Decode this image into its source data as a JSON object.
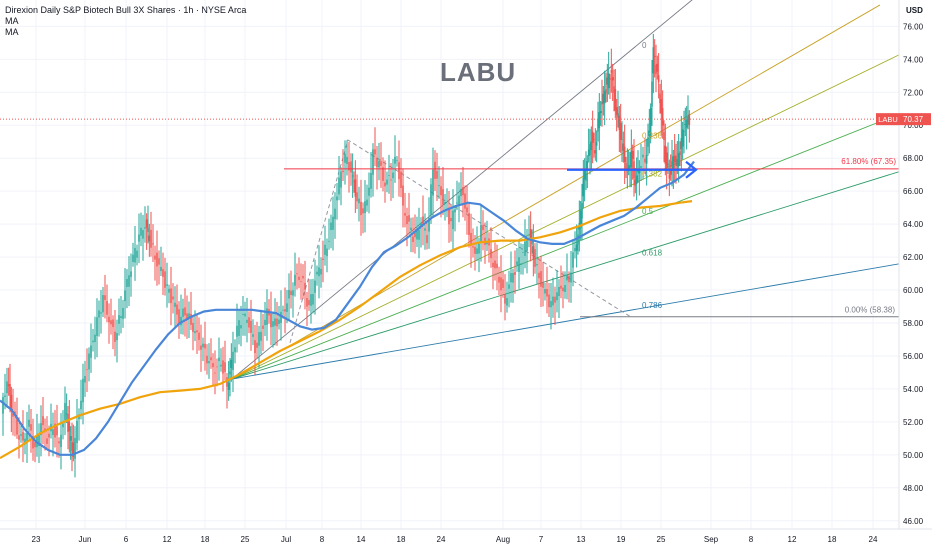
{
  "legend": {
    "title": "Direxion Daily S&P Biotech Bull 3X Shares · 1h · NYSE Arca",
    "ma1": "MA",
    "ma2": "MA"
  },
  "watermark": "LABU",
  "currency": "USD",
  "colors": {
    "up": "#26a69a",
    "down": "#ef5350",
    "ma_fast": "#4a86d8",
    "ma_slow": "#f0a30a",
    "price_line": "#ef5350",
    "fib_line": "#f23645",
    "arrow": "#2962ff",
    "zero_line": "#787b86"
  },
  "chart_data": {
    "type": "candlestick",
    "ticker": "LABU",
    "last_price": 70.37,
    "last_price_label": "70.37",
    "ticker_label": "LABU",
    "y_range": [
      45.5,
      77.6
    ],
    "y_ticks": [
      46,
      48,
      50,
      52,
      54,
      56,
      58,
      60,
      62,
      64,
      66,
      68,
      70,
      72,
      74,
      76
    ],
    "y_tick_labels": [
      "46.00",
      "48.00",
      "50.00",
      "52.00",
      "54.00",
      "56.00",
      "58.00",
      "60.00",
      "62.00",
      "64.00",
      "66.00",
      "68.00",
      "70.00",
      "72.00",
      "74.00",
      "76.00"
    ],
    "x_range": [
      0,
      930
    ],
    "x_ticks": [
      {
        "label": "23",
        "pos": 36
      },
      {
        "label": "Jun",
        "pos": 85
      },
      {
        "label": "6",
        "pos": 126
      },
      {
        "label": "12",
        "pos": 167
      },
      {
        "label": "18",
        "pos": 205
      },
      {
        "label": "25",
        "pos": 245
      },
      {
        "label": "Jul",
        "pos": 286
      },
      {
        "label": "8",
        "pos": 322
      },
      {
        "label": "14",
        "pos": 361
      },
      {
        "label": "18",
        "pos": 401
      },
      {
        "label": "24",
        "pos": 441
      },
      {
        "label": "Aug",
        "pos": 503
      },
      {
        "label": "7",
        "pos": 541
      },
      {
        "label": "13",
        "pos": 581
      },
      {
        "label": "19",
        "pos": 621
      },
      {
        "label": "25",
        "pos": 661
      },
      {
        "label": "Sep",
        "pos": 711
      },
      {
        "label": "8",
        "pos": 751
      },
      {
        "label": "12",
        "pos": 792
      },
      {
        "label": "18",
        "pos": 832
      },
      {
        "label": "24",
        "pos": 873
      }
    ],
    "close_path": [
      [
        2,
        52.5
      ],
      [
        8,
        54.5
      ],
      [
        12,
        53.0
      ],
      [
        18,
        51.5
      ],
      [
        24,
        50.8
      ],
      [
        30,
        51.8
      ],
      [
        36,
        50.2
      ],
      [
        42,
        52.0
      ],
      [
        48,
        51.0
      ],
      [
        54,
        51.8
      ],
      [
        60,
        50.6
      ],
      [
        66,
        52.8
      ],
      [
        70,
        51.2
      ],
      [
        74,
        50.0
      ],
      [
        80,
        52.8
      ],
      [
        86,
        55.0
      ],
      [
        92,
        56.5
      ],
      [
        98,
        58.0
      ],
      [
        104,
        59.5
      ],
      [
        110,
        58.2
      ],
      [
        116,
        57.2
      ],
      [
        122,
        58.6
      ],
      [
        128,
        60.5
      ],
      [
        134,
        61.8
      ],
      [
        140,
        63.2
      ],
      [
        146,
        64.0
      ],
      [
        150,
        63.3
      ],
      [
        156,
        62.0
      ],
      [
        162,
        61.2
      ],
      [
        168,
        60.0
      ],
      [
        174,
        59.3
      ],
      [
        180,
        58.2
      ],
      [
        186,
        58.8
      ],
      [
        192,
        58.0
      ],
      [
        198,
        57.2
      ],
      [
        204,
        56.4
      ],
      [
        210,
        55.6
      ],
      [
        216,
        55.2
      ],
      [
        222,
        55.8
      ],
      [
        228,
        54.2
      ],
      [
        232,
        55.5
      ],
      [
        238,
        57.5
      ],
      [
        244,
        58.5
      ],
      [
        250,
        58.0
      ],
      [
        256,
        56.5
      ],
      [
        262,
        57.5
      ],
      [
        268,
        58.6
      ],
      [
        274,
        57.8
      ],
      [
        280,
        58.2
      ],
      [
        286,
        59.0
      ],
      [
        292,
        60.0
      ],
      [
        298,
        61.0
      ],
      [
        304,
        60.4
      ],
      [
        310,
        58.8
      ],
      [
        316,
        60.6
      ],
      [
        322,
        61.6
      ],
      [
        328,
        62.8
      ],
      [
        334,
        64.4
      ],
      [
        340,
        66.5
      ],
      [
        346,
        68.0
      ],
      [
        352,
        67.2
      ],
      [
        356,
        66.0
      ],
      [
        362,
        64.8
      ],
      [
        368,
        65.4
      ],
      [
        374,
        68.2
      ],
      [
        380,
        67.6
      ],
      [
        386,
        66.4
      ],
      [
        392,
        67.0
      ],
      [
        398,
        68.1
      ],
      [
        404,
        65.0
      ],
      [
        410,
        63.8
      ],
      [
        416,
        63.0
      ],
      [
        422,
        64.2
      ],
      [
        428,
        63.2
      ],
      [
        434,
        67.5
      ],
      [
        440,
        66.2
      ],
      [
        446,
        65.0
      ],
      [
        452,
        64.0
      ],
      [
        458,
        65.5
      ],
      [
        464,
        66.1
      ],
      [
        470,
        63.5
      ],
      [
        476,
        62.0
      ],
      [
        482,
        63.6
      ],
      [
        488,
        62.8
      ],
      [
        494,
        61.6
      ],
      [
        500,
        60.8
      ],
      [
        506,
        59.3
      ],
      [
        512,
        60.8
      ],
      [
        518,
        61.4
      ],
      [
        524,
        62.2
      ],
      [
        530,
        63.6
      ],
      [
        534,
        62.2
      ],
      [
        540,
        60.8
      ],
      [
        546,
        59.8
      ],
      [
        552,
        59.0
      ],
      [
        558,
        59.8
      ],
      [
        564,
        60.2
      ],
      [
        570,
        60.8
      ],
      [
        576,
        62.6
      ],
      [
        580,
        63.8
      ],
      [
        584,
        66.5
      ],
      [
        588,
        67.8
      ],
      [
        592,
        69.3
      ],
      [
        596,
        68.6
      ],
      [
        600,
        70.8
      ],
      [
        604,
        71.6
      ],
      [
        608,
        72.6
      ],
      [
        612,
        73.2
      ],
      [
        616,
        71.2
      ],
      [
        620,
        70.0
      ],
      [
        624,
        68.4
      ],
      [
        628,
        67.0
      ],
      [
        632,
        68.2
      ],
      [
        636,
        66.4
      ],
      [
        640,
        67.6
      ],
      [
        646,
        68.0
      ],
      [
        650,
        69.6
      ],
      [
        654,
        74.4
      ],
      [
        658,
        73.0
      ],
      [
        662,
        70.8
      ],
      [
        666,
        68.0
      ],
      [
        670,
        67.0
      ],
      [
        674,
        68.0
      ],
      [
        678,
        67.6
      ],
      [
        682,
        69.0
      ],
      [
        686,
        70.2
      ],
      [
        690,
        70.37
      ]
    ],
    "ma_fast": {
      "name": "MA",
      "points": [
        [
          0,
          53.3
        ],
        [
          12,
          52.7
        ],
        [
          24,
          51.6
        ],
        [
          36,
          50.8
        ],
        [
          48,
          50.3
        ],
        [
          60,
          50.0
        ],
        [
          72,
          50.0
        ],
        [
          84,
          50.3
        ],
        [
          96,
          51.0
        ],
        [
          108,
          52.0
        ],
        [
          120,
          53.2
        ],
        [
          132,
          54.4
        ],
        [
          144,
          55.4
        ],
        [
          156,
          56.4
        ],
        [
          168,
          57.3
        ],
        [
          180,
          58.0
        ],
        [
          192,
          58.4
        ],
        [
          204,
          58.7
        ],
        [
          216,
          58.8
        ],
        [
          228,
          58.8
        ],
        [
          240,
          58.8
        ],
        [
          252,
          58.8
        ],
        [
          264,
          58.7
        ],
        [
          276,
          58.6
        ],
        [
          288,
          58.2
        ],
        [
          300,
          57.8
        ],
        [
          312,
          57.6
        ],
        [
          324,
          57.7
        ],
        [
          336,
          58.2
        ],
        [
          348,
          59.2
        ],
        [
          360,
          60.2
        ],
        [
          372,
          61.4
        ],
        [
          384,
          62.3
        ],
        [
          396,
          62.7
        ],
        [
          408,
          63.2
        ],
        [
          420,
          63.8
        ],
        [
          432,
          64.4
        ],
        [
          444,
          64.8
        ],
        [
          456,
          65.1
        ],
        [
          468,
          65.3
        ],
        [
          480,
          65.2
        ],
        [
          492,
          64.7
        ],
        [
          504,
          64.2
        ],
        [
          516,
          63.6
        ],
        [
          528,
          63.1
        ],
        [
          540,
          62.9
        ],
        [
          552,
          62.8
        ],
        [
          564,
          62.8
        ],
        [
          576,
          63.1
        ],
        [
          588,
          63.5
        ],
        [
          600,
          63.9
        ],
        [
          612,
          64.2
        ],
        [
          624,
          64.5
        ],
        [
          636,
          65.0
        ],
        [
          648,
          65.6
        ],
        [
          660,
          66.2
        ],
        [
          672,
          66.5
        ],
        [
          684,
          67.0
        ],
        [
          694,
          67.8
        ]
      ]
    },
    "ma_slow": {
      "name": "MA",
      "points": [
        [
          0,
          49.8
        ],
        [
          20,
          50.5
        ],
        [
          40,
          51.3
        ],
        [
          60,
          51.9
        ],
        [
          80,
          52.4
        ],
        [
          100,
          52.8
        ],
        [
          120,
          53.1
        ],
        [
          140,
          53.5
        ],
        [
          160,
          53.8
        ],
        [
          180,
          53.9
        ],
        [
          200,
          54.0
        ],
        [
          220,
          54.3
        ],
        [
          240,
          54.9
        ],
        [
          260,
          55.6
        ],
        [
          280,
          56.3
        ],
        [
          300,
          56.9
        ],
        [
          320,
          57.5
        ],
        [
          340,
          58.2
        ],
        [
          360,
          59.0
        ],
        [
          380,
          59.9
        ],
        [
          400,
          60.8
        ],
        [
          420,
          61.5
        ],
        [
          440,
          62.1
        ],
        [
          460,
          62.6
        ],
        [
          480,
          62.9
        ],
        [
          500,
          63.0
        ],
        [
          520,
          63.0
        ],
        [
          540,
          63.2
        ],
        [
          560,
          63.5
        ],
        [
          580,
          63.9
        ],
        [
          600,
          64.4
        ],
        [
          620,
          64.8
        ],
        [
          640,
          65.0
        ],
        [
          660,
          65.1
        ],
        [
          680,
          65.3
        ],
        [
          692,
          65.4
        ]
      ]
    },
    "fib_levels": [
      {
        "label": "0",
        "value": 74.7
      },
      {
        "label": "0.236",
        "value": 69.2
      },
      {
        "label": "0.382",
        "value": 66.9
      },
      {
        "label": "0.5",
        "value": 64.6
      },
      {
        "label": "0.618",
        "value": 62.1
      },
      {
        "label": "0.786",
        "value": 58.9
      }
    ],
    "fib_label_618": "61.80% (67.35)",
    "fib_value_618": 67.35,
    "fib_label_zero": "0.00% (58.38)",
    "fib_value_zero": 58.38,
    "fan_origin": [
      232,
      54.6
    ],
    "fan_ends": [
      {
        "color": "#787b86",
        "end": [
          700,
          78.0
        ]
      },
      {
        "color": "#c9a227",
        "end": [
          880,
          77.3
        ]
      },
      {
        "color": "#a5b02a",
        "end": [
          900,
          74.3
        ]
      },
      {
        "color": "#4caf50",
        "end": [
          900,
          70.7
        ]
      },
      {
        "color": "#2e9c6a",
        "end": [
          900,
          67.2
        ]
      },
      {
        "color": "#2b7bab",
        "end": [
          900,
          61.6
        ]
      }
    ],
    "dashed_path": [
      [
        290,
        56.8
      ],
      [
        348,
        69.1
      ],
      [
        630,
        58.4
      ]
    ]
  }
}
